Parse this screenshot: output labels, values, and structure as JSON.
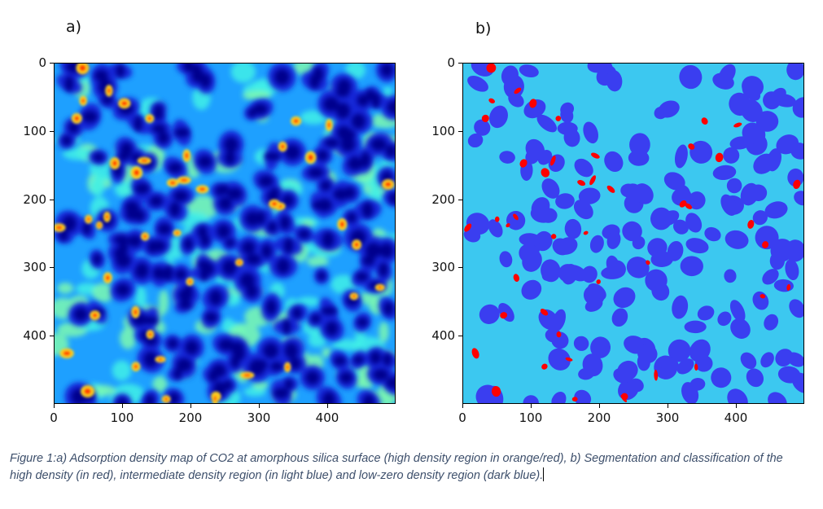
{
  "figure": {
    "panel_a_label": "a)",
    "panel_b_label": "b)",
    "caption": "Figure 1:a) Adsorption density map of CO2 at amorphous silica surface (high density region in orange/red), b) Segmentation and classification of the high density (in red), intermediate density region (in light blue) and low-zero density region (dark blue)."
  },
  "chart_data": [
    {
      "type": "heatmap",
      "title": "",
      "xlabel": "",
      "ylabel": "",
      "xlim": [
        0,
        500
      ],
      "ylim": [
        500,
        0
      ],
      "x_ticks": [
        "0",
        "100",
        "200",
        "300",
        "400"
      ],
      "y_ticks": [
        "0",
        "100",
        "200",
        "300",
        "400"
      ],
      "colormap": "jet",
      "colors": {
        "low": "#00008c",
        "mid": "#22d3f0",
        "high": "#ff2a00"
      }
    },
    {
      "type": "heatmap",
      "title": "",
      "xlabel": "",
      "ylabel": "",
      "xlim": [
        0,
        500
      ],
      "ylim": [
        500,
        0
      ],
      "x_ticks": [
        "0",
        "100",
        "200",
        "300",
        "400"
      ],
      "y_ticks": [
        "0",
        "100",
        "200",
        "300",
        "400"
      ],
      "classes": [
        "high density",
        "intermediate density",
        "low-zero density"
      ],
      "colors": {
        "high": "#ff0000",
        "intermediate": "#3cc8f0",
        "low": "#3a3ef0"
      }
    }
  ]
}
